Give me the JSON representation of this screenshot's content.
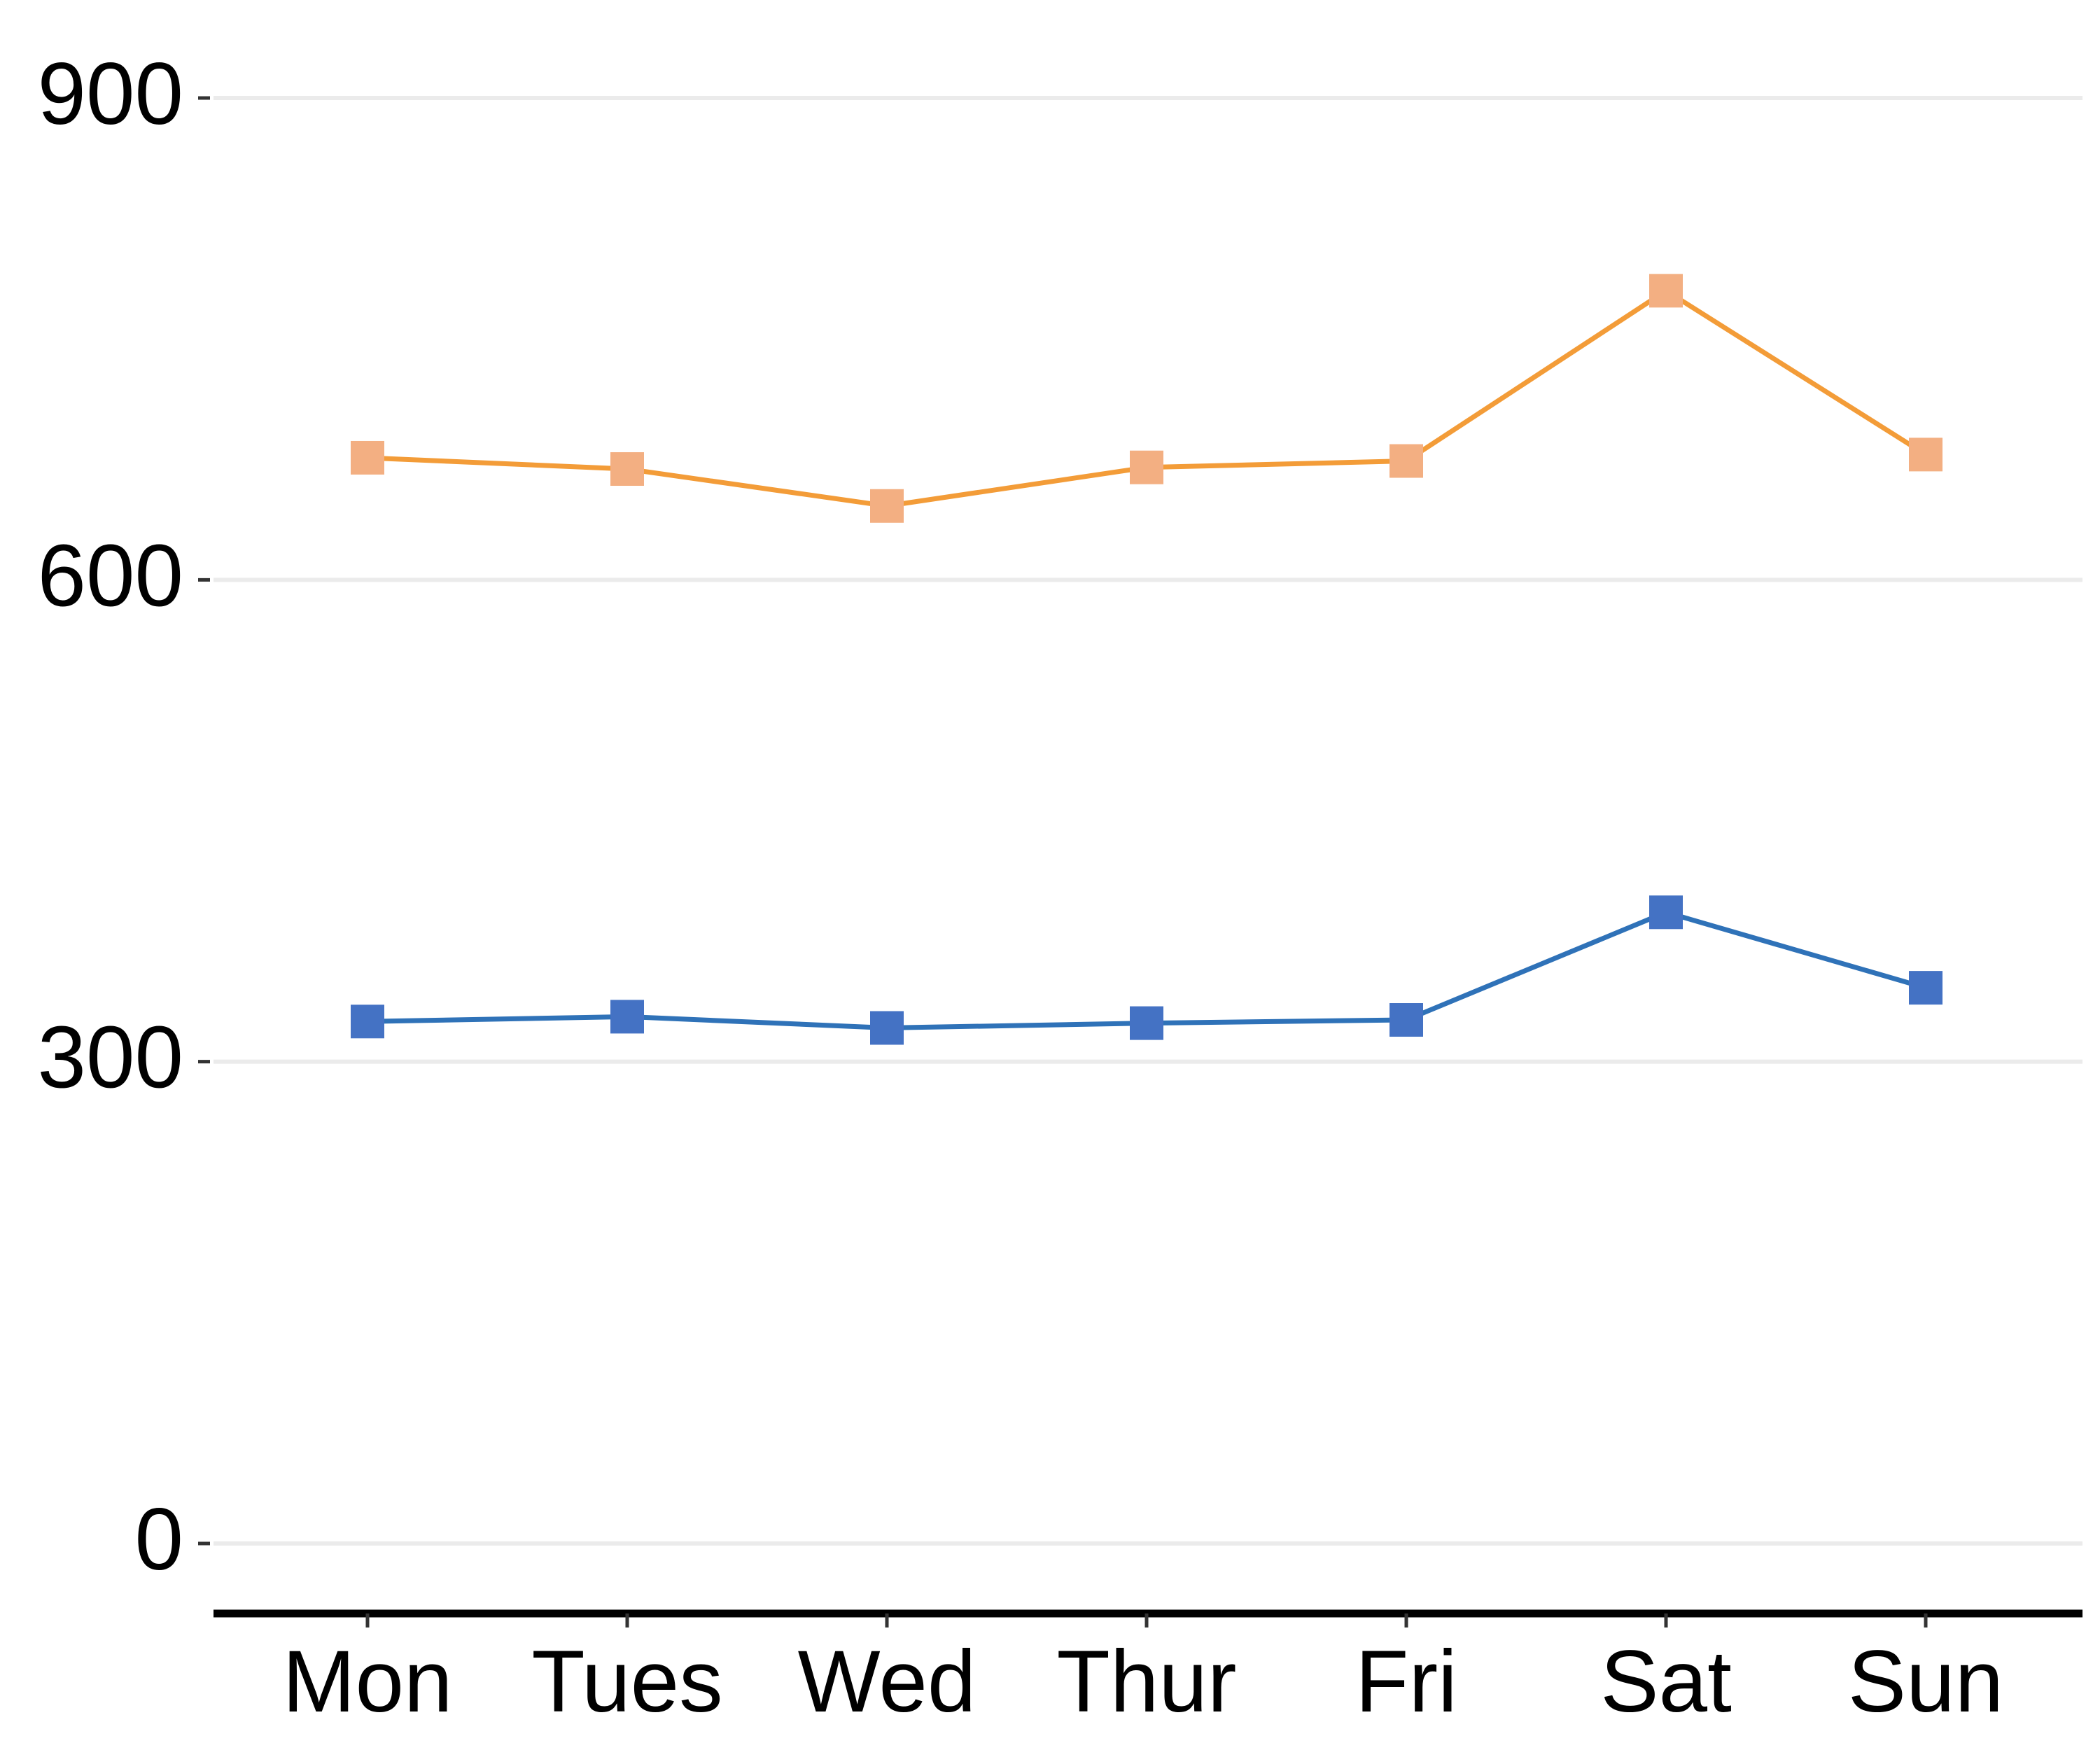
{
  "chart_data": {
    "type": "line",
    "categories": [
      "Mon",
      "Tues",
      "Wed",
      "Thur",
      "Fri",
      "Sat",
      "Sun"
    ],
    "series": [
      {
        "values": [
          676,
          669,
          646,
          670,
          674,
          780,
          678
        ],
        "line_color": "#F39C38",
        "marker_color": "#F3AF82",
        "marker": "square"
      },
      {
        "values": [
          325,
          328,
          321,
          324,
          326,
          393,
          346
        ],
        "line_color": "#2F72B8",
        "marker_color": "#4472C4",
        "marker": "square"
      }
    ],
    "y_ticks": [
      "0",
      "300",
      "600",
      "900"
    ],
    "ylim": [
      -50,
      960
    ],
    "grid": "horizontal",
    "gridline_color": "#EBEBEB",
    "axis_color": "#000000",
    "legend": "none"
  }
}
